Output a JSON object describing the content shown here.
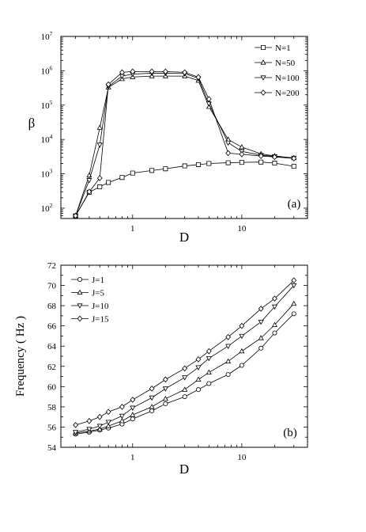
{
  "chart_data": [
    {
      "type": "line",
      "panel_label": "(a)",
      "xlabel": "D",
      "ylabel": "β",
      "xscale": "log",
      "yscale": "log",
      "xlim": [
        0.22,
        40
      ],
      "ylim": [
        50,
        10000000
      ],
      "x_ticks": [
        {
          "v": 1,
          "label": "1"
        },
        {
          "v": 10,
          "label": "10"
        }
      ],
      "y_ticks": [
        {
          "v": 100,
          "base": "10",
          "exp": "2"
        },
        {
          "v": 1000,
          "base": "10",
          "exp": "3"
        },
        {
          "v": 10000,
          "base": "10",
          "exp": "4"
        },
        {
          "v": 100000,
          "base": "10",
          "exp": "5"
        },
        {
          "v": 1000000,
          "base": "10",
          "exp": "6"
        },
        {
          "v": 10000000,
          "base": "10",
          "exp": "7"
        }
      ],
      "legend_position": "top-right",
      "series": [
        {
          "name": "N=1",
          "marker": "square",
          "x": [
            0.3,
            0.4,
            0.5,
            0.6,
            0.8,
            1,
            1.5,
            2,
            3,
            4,
            5,
            7.5,
            10,
            15,
            20,
            30
          ],
          "y": [
            60,
            290,
            420,
            560,
            780,
            1050,
            1250,
            1400,
            1700,
            1850,
            2000,
            2100,
            2150,
            2200,
            2050,
            1650
          ]
        },
        {
          "name": "N=50",
          "marker": "triangle-up",
          "x": [
            0.3,
            0.4,
            0.5,
            0.6,
            0.8,
            1,
            1.5,
            2,
            3,
            4,
            5,
            7.5,
            10,
            15,
            20,
            30
          ],
          "y": [
            60,
            900,
            22000,
            330000,
            580000,
            660000,
            700000,
            700000,
            700000,
            520000,
            90000,
            10000,
            6000,
            3800,
            3300,
            2900
          ]
        },
        {
          "name": "N=100",
          "marker": "triangle-down",
          "x": [
            0.3,
            0.4,
            0.5,
            0.6,
            0.8,
            1,
            1.5,
            2,
            3,
            4,
            5,
            7.5,
            10,
            15,
            20,
            30
          ],
          "y": [
            60,
            650,
            7000,
            350000,
            700000,
            800000,
            850000,
            850000,
            830000,
            600000,
            110000,
            8000,
            4500,
            3500,
            3200,
            2900
          ]
        },
        {
          "name": "N=200",
          "marker": "diamond",
          "x": [
            0.3,
            0.4,
            0.5,
            0.6,
            0.8,
            1,
            1.5,
            2,
            3,
            4,
            5,
            7.5,
            10,
            15,
            20,
            30
          ],
          "y": [
            60,
            300,
            750,
            400000,
            900000,
            950000,
            950000,
            950000,
            900000,
            650000,
            150000,
            4000,
            3700,
            3300,
            3100,
            2800
          ]
        }
      ]
    },
    {
      "type": "line",
      "panel_label": "(b)",
      "xlabel": "D",
      "ylabel": "Frequency ( Hz )",
      "xscale": "log",
      "yscale": "linear",
      "xlim": [
        0.22,
        40
      ],
      "ylim": [
        54,
        72
      ],
      "x_ticks": [
        {
          "v": 1,
          "label": "1"
        },
        {
          "v": 10,
          "label": "10"
        }
      ],
      "y_ticks": [
        {
          "v": 54,
          "label": "54"
        },
        {
          "v": 56,
          "label": "56"
        },
        {
          "v": 58,
          "label": "58"
        },
        {
          "v": 60,
          "label": "60"
        },
        {
          "v": 62,
          "label": "62"
        },
        {
          "v": 64,
          "label": "64"
        },
        {
          "v": 66,
          "label": "66"
        },
        {
          "v": 68,
          "label": "68"
        },
        {
          "v": 70,
          "label": "70"
        },
        {
          "v": 72,
          "label": "72"
        }
      ],
      "legend_position": "top-left",
      "series": [
        {
          "name": "J=1",
          "marker": "circle",
          "x": [
            0.3,
            0.4,
            0.5,
            0.6,
            0.8,
            1,
            1.5,
            2,
            3,
            4,
            5,
            7.5,
            10,
            15,
            20,
            30
          ],
          "y": [
            55.3,
            55.5,
            55.7,
            55.9,
            56.3,
            56.8,
            57.6,
            58.3,
            59.0,
            59.7,
            60.3,
            61.2,
            62.1,
            63.8,
            65.3,
            67.2
          ]
        },
        {
          "name": "J=5",
          "marker": "triangle-up",
          "x": [
            0.3,
            0.4,
            0.5,
            0.6,
            0.8,
            1,
            1.5,
            2,
            3,
            4,
            5,
            7.5,
            10,
            15,
            20,
            30
          ],
          "y": [
            55.4,
            55.6,
            55.8,
            56.1,
            56.6,
            57.2,
            58.0,
            58.8,
            59.7,
            60.7,
            61.4,
            62.5,
            63.5,
            64.8,
            66.1,
            68.2
          ]
        },
        {
          "name": "J=10",
          "marker": "triangle-down",
          "x": [
            0.3,
            0.4,
            0.5,
            0.6,
            0.8,
            1,
            1.5,
            2,
            3,
            4,
            5,
            7.5,
            10,
            15,
            20,
            30
          ],
          "y": [
            55.5,
            55.8,
            56.1,
            56.5,
            57.1,
            57.9,
            58.9,
            59.8,
            60.9,
            61.9,
            62.8,
            64.0,
            65.0,
            66.4,
            67.9,
            70.0
          ]
        },
        {
          "name": "J=15",
          "marker": "diamond",
          "x": [
            0.3,
            0.4,
            0.5,
            0.6,
            0.8,
            1,
            1.5,
            2,
            3,
            4,
            5,
            7.5,
            10,
            15,
            20,
            30
          ],
          "y": [
            56.2,
            56.6,
            57.0,
            57.5,
            58.0,
            58.7,
            59.8,
            60.7,
            61.8,
            62.7,
            63.5,
            64.9,
            66.0,
            67.7,
            68.7,
            70.5
          ]
        }
      ]
    }
  ]
}
